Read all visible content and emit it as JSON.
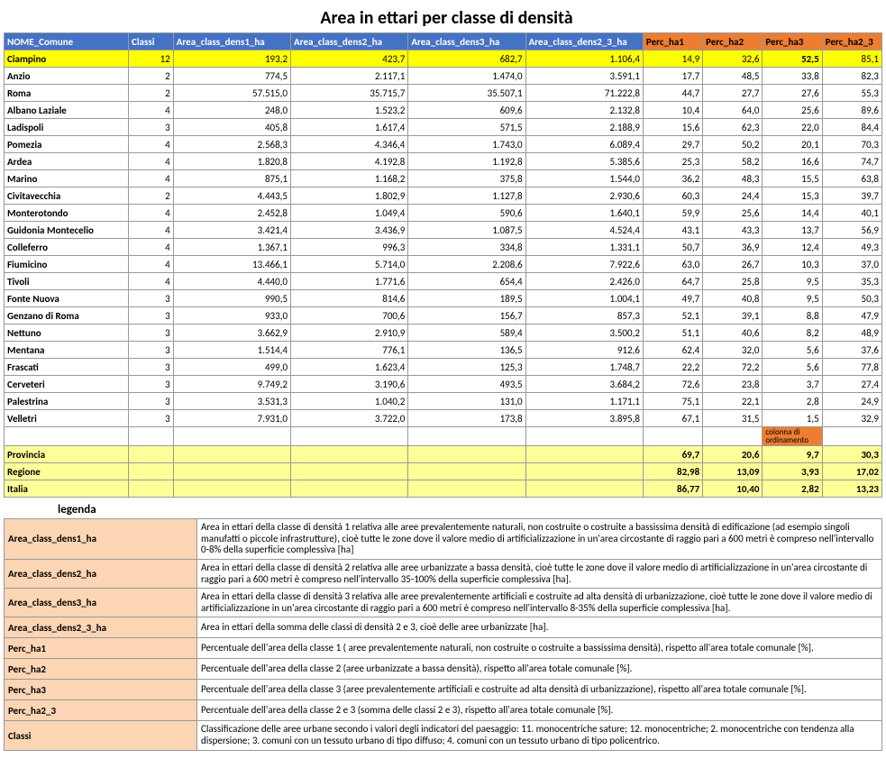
{
  "title": "Area in ettari per classe di densità",
  "columns": [
    "NOME_Comune",
    "Classi",
    "Area_class_dens1_ha",
    "Area_class_dens2_ha",
    "Area_class_dens3_ha",
    "Area_class_dens2_3_ha",
    "Perc_ha1",
    "Perc_ha2",
    "Perc_ha3",
    "Perc_ha2_3"
  ],
  "header_colors": [
    "blue",
    "blue",
    "blue",
    "blue",
    "blue",
    "blue",
    "orange",
    "orange",
    "orange",
    "orange"
  ],
  "highlight_row_index": 0,
  "highlight_classi_green": true,
  "bold_cell": {
    "row": 0,
    "col": 8
  },
  "rows": [
    [
      "Ciampino",
      "12",
      "193,2",
      "423,7",
      "682,7",
      "1.106,4",
      "14,9",
      "32,6",
      "52,5",
      "85,1"
    ],
    [
      "Anzio",
      "2",
      "774,5",
      "2.117,1",
      "1.474,0",
      "3.591,1",
      "17,7",
      "48,5",
      "33,8",
      "82,3"
    ],
    [
      "Roma",
      "2",
      "57.515,0",
      "35.715,7",
      "35.507,1",
      "71.222,8",
      "44,7",
      "27,7",
      "27,6",
      "55,3"
    ],
    [
      "Albano Laziale",
      "4",
      "248,0",
      "1.523,2",
      "609,6",
      "2.132,8",
      "10,4",
      "64,0",
      "25,6",
      "89,6"
    ],
    [
      "Ladispoli",
      "3",
      "405,8",
      "1.617,4",
      "571,5",
      "2.188,9",
      "15,6",
      "62,3",
      "22,0",
      "84,4"
    ],
    [
      "Pomezia",
      "4",
      "2.568,3",
      "4.346,4",
      "1.743,0",
      "6.089,4",
      "29,7",
      "50,2",
      "20,1",
      "70,3"
    ],
    [
      "Ardea",
      "4",
      "1.820,8",
      "4.192,8",
      "1.192,8",
      "5.385,6",
      "25,3",
      "58,2",
      "16,6",
      "74,7"
    ],
    [
      "Marino",
      "4",
      "875,1",
      "1.168,2",
      "375,8",
      "1.544,0",
      "36,2",
      "48,3",
      "15,5",
      "63,8"
    ],
    [
      "Civitavecchia",
      "2",
      "4.443,5",
      "1.802,9",
      "1.127,8",
      "2.930,6",
      "60,3",
      "24,4",
      "15,3",
      "39,7"
    ],
    [
      "Monterotondo",
      "4",
      "2.452,8",
      "1.049,4",
      "590,6",
      "1.640,1",
      "59,9",
      "25,6",
      "14,4",
      "40,1"
    ],
    [
      "Guidonia Montecelio",
      "4",
      "3.421,4",
      "3.436,9",
      "1.087,5",
      "4.524,4",
      "43,1",
      "43,3",
      "13,7",
      "56,9"
    ],
    [
      "Colleferro",
      "4",
      "1.367,1",
      "996,3",
      "334,8",
      "1.331,1",
      "50,7",
      "36,9",
      "12,4",
      "49,3"
    ],
    [
      "Fiumicino",
      "4",
      "13.466,1",
      "5.714,0",
      "2.208,6",
      "7.922,6",
      "63,0",
      "26,7",
      "10,3",
      "37,0"
    ],
    [
      "Tivoli",
      "4",
      "4.440,0",
      "1.771,6",
      "654,4",
      "2.426,0",
      "64,7",
      "25,8",
      "9,5",
      "35,3"
    ],
    [
      "Fonte Nuova",
      "3",
      "990,5",
      "814,6",
      "189,5",
      "1.004,1",
      "49,7",
      "40,8",
      "9,5",
      "50,3"
    ],
    [
      "Genzano di Roma",
      "3",
      "933,0",
      "700,6",
      "156,7",
      "857,3",
      "52,1",
      "39,1",
      "8,8",
      "47,9"
    ],
    [
      "Nettuno",
      "3",
      "3.662,9",
      "2.910,9",
      "589,4",
      "3.500,2",
      "51,1",
      "40,6",
      "8,2",
      "48,9"
    ],
    [
      "Mentana",
      "3",
      "1.514,4",
      "776,1",
      "136,5",
      "912,6",
      "62,4",
      "32,0",
      "5,6",
      "37,6"
    ],
    [
      "Frascati",
      "3",
      "499,0",
      "1.623,4",
      "125,3",
      "1.748,7",
      "22,2",
      "72,2",
      "5,6",
      "77,8"
    ],
    [
      "Cerveteri",
      "3",
      "9.749,2",
      "3.190,6",
      "493,5",
      "3.684,2",
      "72,6",
      "23,8",
      "3,7",
      "27,4"
    ],
    [
      "Palestrina",
      "3",
      "3.531,3",
      "1.040,2",
      "131,0",
      "1.171,1",
      "75,1",
      "22,1",
      "2,8",
      "24,9"
    ],
    [
      "Velletri",
      "3",
      "7.931,0",
      "3.722,0",
      "173,8",
      "3.895,8",
      "67,1",
      "31,5",
      "1,5",
      "32,9"
    ]
  ],
  "note_text": "colonna di ordinamento",
  "summary": [
    [
      "Provincia",
      "",
      "",
      "",
      "",
      "",
      "69,7",
      "20,6",
      "9,7",
      "30,3"
    ],
    [
      "Regione",
      "",
      "",
      "",
      "",
      "",
      "82,98",
      "13,09",
      "3,93",
      "17,02"
    ],
    [
      "Italia",
      "",
      "",
      "",
      "",
      "",
      "86,77",
      "10,40",
      "2,82",
      "13,23"
    ]
  ],
  "legend_title": "legenda",
  "legend": [
    [
      "Area_class_dens1_ha",
      "Area in ettari della classe di densità 1 relativa alle aree prevalentemente naturali, non costruite o costruite a bassissima densità di edificazione (ad esempio singoli manufatti o piccole infrastrutture), cioè tutte le zone dove il valore medio di artificializzazione in un'area circostante di raggio pari a 600 metri è compreso nell'intervallo 0-8% della superficie complessiva [ha]"
    ],
    [
      "Area_class_dens2_ha",
      "Area in ettari della classe di densità 2 relativa alle aree urbanizzate a bassa densità, cioè tutte le zone dove il valore medio di artificializzazione in un'area circostante di raggio pari a 600 metri è compreso nell'intervallo 35-100% della superficie complessiva [ha]."
    ],
    [
      "Area_class_dens3_ha",
      "Area in ettari della classe di densità 3 relativa alle aree prevalentemente artificiali e costruite ad alta densità di urbanizzazione, cioè tutte le zone dove il valore medio di artificializzazione in un'area circostante di raggio pari a 600 metri è compreso nell'intervallo 8-35% della superficie complessiva [ha]."
    ],
    [
      "Area_class_dens2_3_ha",
      "Area in ettari della  somma delle classi di densità 2 e 3, cioè delle aree urbanizzate  [ha]."
    ],
    [
      "Perc_ha1",
      "Percentuale dell'area della classe 1 ( aree prevalentemente naturali, non costruite o costruite a bassissima densità), rispetto all'area totale comunale [%]."
    ],
    [
      "Perc_ha2",
      "Percentuale dell'area della classe 2 (aree urbanizzate a bassa densità), rispetto all'area totale comunale [%]."
    ],
    [
      "Perc_ha3",
      "Percentuale dell'area della classe 3 (aree prevalentemente artificiali e costruite ad alta densità di urbanizzazione), rispetto all'area totale comunale [%]."
    ],
    [
      "Perc_ha2_3",
      "Percentuale dell'area della classe 2 e 3 (somma delle classi 2 e 3), rispetto all'area totale comunale [%]."
    ],
    [
      "Classi",
      "Classificazione delle aree urbane secondo i valori degli indicatori del paesaggio:\n11. monocentriche sature; 12. monocentriche; 2. monocentriche con tendenza alla dispersione; 3. comuni con un tessuto urbano di tipo diffuso; 4. comuni con un tessuto urbano di tipo policentrico."
    ]
  ]
}
